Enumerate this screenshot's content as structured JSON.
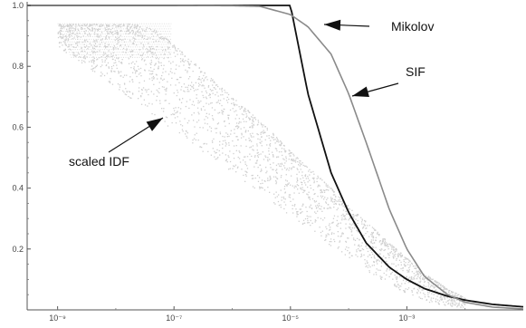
{
  "chart_data": {
    "type": "scatter",
    "title": "",
    "xlabel": "",
    "ylabel": "",
    "x_scale": "log10",
    "xlim": [
      3e-10,
      0.1
    ],
    "ylim": [
      0.0,
      1.0
    ],
    "grid": false,
    "legend": "none",
    "x_ticks": [
      {
        "value": 1e-09,
        "label": "10⁻⁹"
      },
      {
        "value": 1e-07,
        "label": "10⁻⁷"
      },
      {
        "value": 1e-05,
        "label": "10⁻⁵"
      },
      {
        "value": 0.001,
        "label": "10⁻³"
      }
    ],
    "y_ticks": [
      {
        "value": 0.2,
        "label": "0.2"
      },
      {
        "value": 0.4,
        "label": "0.4"
      },
      {
        "value": 0.6,
        "label": "0.6"
      },
      {
        "value": 0.8,
        "label": "0.8"
      },
      {
        "value": 1.0,
        "label": "1.0"
      }
    ],
    "series": [
      {
        "name": "Mikolov",
        "kind": "line",
        "color": "#111111",
        "x": [
          3e-10,
          1e-09,
          1e-08,
          1e-07,
          1e-06,
          1e-05,
          2e-05,
          5e-05,
          0.0001,
          0.0002,
          0.0005,
          0.001,
          0.002,
          0.005,
          0.01,
          0.03,
          0.1
        ],
        "y": [
          1.0,
          1.0,
          1.0,
          1.0,
          1.0,
          1.0,
          0.71,
          0.45,
          0.32,
          0.22,
          0.14,
          0.1,
          0.07,
          0.045,
          0.032,
          0.018,
          0.01
        ]
      },
      {
        "name": "SIF",
        "kind": "line",
        "color": "#8a8a8a",
        "x": [
          3e-10,
          1e-09,
          1e-08,
          1e-07,
          1e-06,
          3e-06,
          1e-05,
          2e-05,
          5e-05,
          0.0001,
          0.0002,
          0.0005,
          0.001,
          0.002,
          0.005,
          0.01,
          0.03,
          0.1
        ],
        "y": [
          1.0,
          1.0,
          1.0,
          1.0,
          0.999,
          0.997,
          0.97,
          0.93,
          0.84,
          0.71,
          0.55,
          0.33,
          0.2,
          0.11,
          0.05,
          0.025,
          0.009,
          0.003
        ]
      },
      {
        "name": "scaled IDF",
        "kind": "scatter",
        "color": "#cfcfcf",
        "x": [
          1e-09,
          2e-09,
          3e-09,
          5e-09,
          1e-08,
          2e-08,
          5e-08,
          1e-07,
          2e-07,
          5e-07,
          1e-06,
          2e-06,
          5e-06,
          1e-05,
          2e-05,
          5e-05,
          0.0001,
          0.0002,
          0.0005,
          0.001,
          0.002,
          0.005,
          0.01
        ],
        "y_upper": [
          0.94,
          0.94,
          0.94,
          0.94,
          0.94,
          0.94,
          0.92,
          0.87,
          0.82,
          0.75,
          0.7,
          0.65,
          0.58,
          0.52,
          0.47,
          0.4,
          0.34,
          0.29,
          0.22,
          0.17,
          0.12,
          0.07,
          0.04
        ],
        "y_lower": [
          0.86,
          0.83,
          0.8,
          0.77,
          0.73,
          0.69,
          0.63,
          0.59,
          0.55,
          0.49,
          0.45,
          0.41,
          0.35,
          0.31,
          0.27,
          0.21,
          0.17,
          0.13,
          0.08,
          0.05,
          0.03,
          0.015,
          0.008
        ]
      }
    ],
    "annotations": [
      {
        "text": "Mikolov",
        "series": "Mikolov"
      },
      {
        "text": "SIF",
        "series": "SIF"
      },
      {
        "text": "scaled IDF",
        "series": "scaled IDF"
      }
    ]
  }
}
